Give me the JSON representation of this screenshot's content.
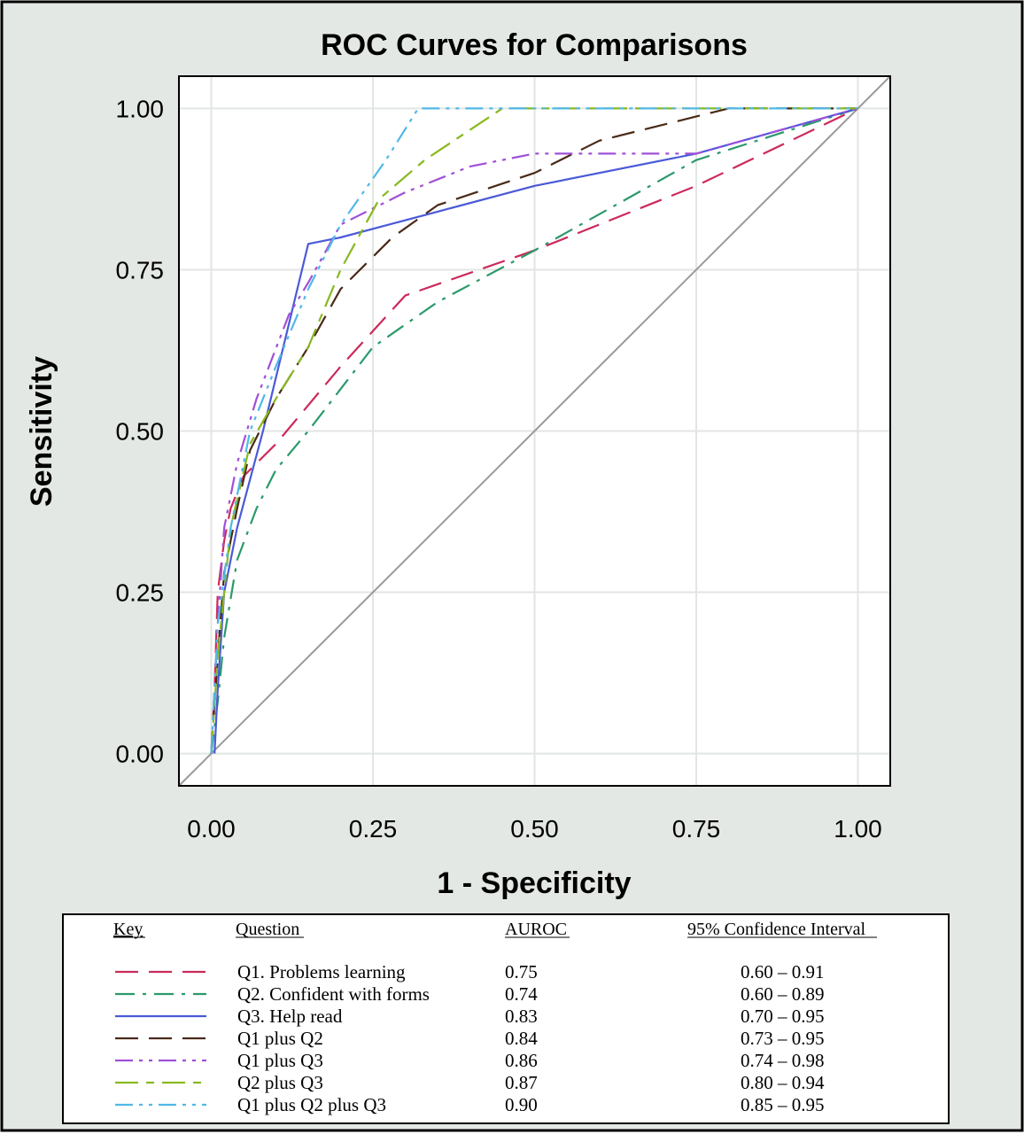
{
  "chart_data": {
    "type": "line",
    "title": "ROC Curves for Comparisons",
    "xlabel": "1 - Specificity",
    "ylabel": "Sensitivity",
    "xlim": [
      -0.05,
      1.05
    ],
    "ylim": [
      -0.05,
      1.05
    ],
    "xticks": [
      "0.00",
      "0.25",
      "0.50",
      "0.75",
      "1.00"
    ],
    "yticks": [
      "0.00",
      "0.25",
      "0.50",
      "0.75",
      "1.00"
    ],
    "grid": true,
    "reference_line": {
      "x": [
        -0.05,
        1.05
      ],
      "y": [
        -0.05,
        1.05
      ],
      "color": "#9a9a9a"
    },
    "series": [
      {
        "name": "Q1. Problems learning",
        "color": "#cc2a5a",
        "dash": "long-dash",
        "x": [
          0.0,
          0.005,
          0.01,
          0.02,
          0.03,
          0.05,
          0.07,
          0.1,
          0.2,
          0.3,
          0.5,
          0.75,
          1.0
        ],
        "y": [
          0.0,
          0.1,
          0.25,
          0.33,
          0.38,
          0.43,
          0.45,
          0.48,
          0.6,
          0.71,
          0.78,
          0.88,
          1.0
        ]
      },
      {
        "name": "Q2. Confident with forms",
        "color": "#2a9a6a",
        "dash": "dash-dot",
        "x": [
          0.0,
          0.01,
          0.02,
          0.04,
          0.07,
          0.1,
          0.15,
          0.25,
          0.35,
          0.5,
          0.75,
          1.0
        ],
        "y": [
          0.0,
          0.08,
          0.18,
          0.3,
          0.38,
          0.44,
          0.5,
          0.63,
          0.7,
          0.78,
          0.92,
          1.0
        ]
      },
      {
        "name": "Q3. Help read",
        "color": "#4a5ad8",
        "dash": "solid",
        "x": [
          0.005,
          0.01,
          0.02,
          0.04,
          0.08,
          0.15,
          0.2,
          0.35,
          0.5,
          0.75,
          1.0
        ],
        "y": [
          0.0,
          0.1,
          0.25,
          0.35,
          0.5,
          0.79,
          0.8,
          0.84,
          0.88,
          0.93,
          1.0
        ]
      },
      {
        "name": "Q1 plus Q2",
        "color": "#4a2a18",
        "dash": "long-dash",
        "x": [
          0.0,
          0.01,
          0.02,
          0.04,
          0.06,
          0.1,
          0.15,
          0.2,
          0.28,
          0.35,
          0.5,
          0.6,
          0.8,
          1.0
        ],
        "y": [
          0.0,
          0.15,
          0.28,
          0.38,
          0.47,
          0.55,
          0.63,
          0.72,
          0.8,
          0.85,
          0.9,
          0.95,
          1.0,
          1.0
        ]
      },
      {
        "name": "Q1 plus Q3",
        "color": "#a050d8",
        "dash": "dash-dot-dot",
        "x": [
          0.0,
          0.01,
          0.02,
          0.04,
          0.07,
          0.12,
          0.15,
          0.2,
          0.3,
          0.4,
          0.5,
          0.6,
          0.75,
          1.0
        ],
        "y": [
          0.0,
          0.2,
          0.35,
          0.45,
          0.55,
          0.68,
          0.73,
          0.82,
          0.87,
          0.91,
          0.93,
          0.93,
          0.93,
          1.0
        ]
      },
      {
        "name": "Q2 plus Q3",
        "color": "#88b820",
        "dash": "long-dash-short-dash",
        "x": [
          0.0,
          0.01,
          0.03,
          0.06,
          0.1,
          0.15,
          0.2,
          0.26,
          0.33,
          0.45,
          0.6,
          0.8,
          1.0
        ],
        "y": [
          0.0,
          0.15,
          0.35,
          0.48,
          0.55,
          0.63,
          0.75,
          0.86,
          0.92,
          1.0,
          1.0,
          1.0,
          1.0
        ]
      },
      {
        "name": "Q1 plus Q2 plus Q3",
        "color": "#50b8e8",
        "dash": "dash-dot-dot",
        "x": [
          0.0,
          0.01,
          0.03,
          0.06,
          0.1,
          0.15,
          0.2,
          0.27,
          0.32,
          0.5,
          0.75,
          1.0
        ],
        "y": [
          0.0,
          0.2,
          0.35,
          0.5,
          0.6,
          0.72,
          0.82,
          0.92,
          1.0,
          1.0,
          1.0,
          1.0
        ]
      }
    ]
  },
  "key_table": {
    "headers": {
      "key": "Key",
      "question": "Question",
      "auroc": "AUROC",
      "ci": "95% Confidence Interval"
    },
    "rows": [
      {
        "question": "Q1. Problems learning",
        "auroc": "0.75",
        "ci": "0.60 – 0.91"
      },
      {
        "question": "Q2. Confident with forms",
        "auroc": "0.74",
        "ci": "0.60 – 0.89"
      },
      {
        "question": "Q3. Help read",
        "auroc": "0.83",
        "ci": "0.70 – 0.95"
      },
      {
        "question": "Q1 plus Q2",
        "auroc": "0.84",
        "ci": "0.73 – 0.95"
      },
      {
        "question": "Q1 plus Q3",
        "auroc": "0.86",
        "ci": "0.74 – 0.98"
      },
      {
        "question": "Q2 plus Q3",
        "auroc": "0.87",
        "ci": "0.80 – 0.94"
      },
      {
        "question": "Q1 plus Q2 plus Q3",
        "auroc": "0.90",
        "ci": "0.85 – 0.95"
      }
    ]
  },
  "colors": {
    "background_panel": "#e4e8e4",
    "plot_area": "#ffffff",
    "grid": "#e2e6e2",
    "frame": "#000000"
  }
}
